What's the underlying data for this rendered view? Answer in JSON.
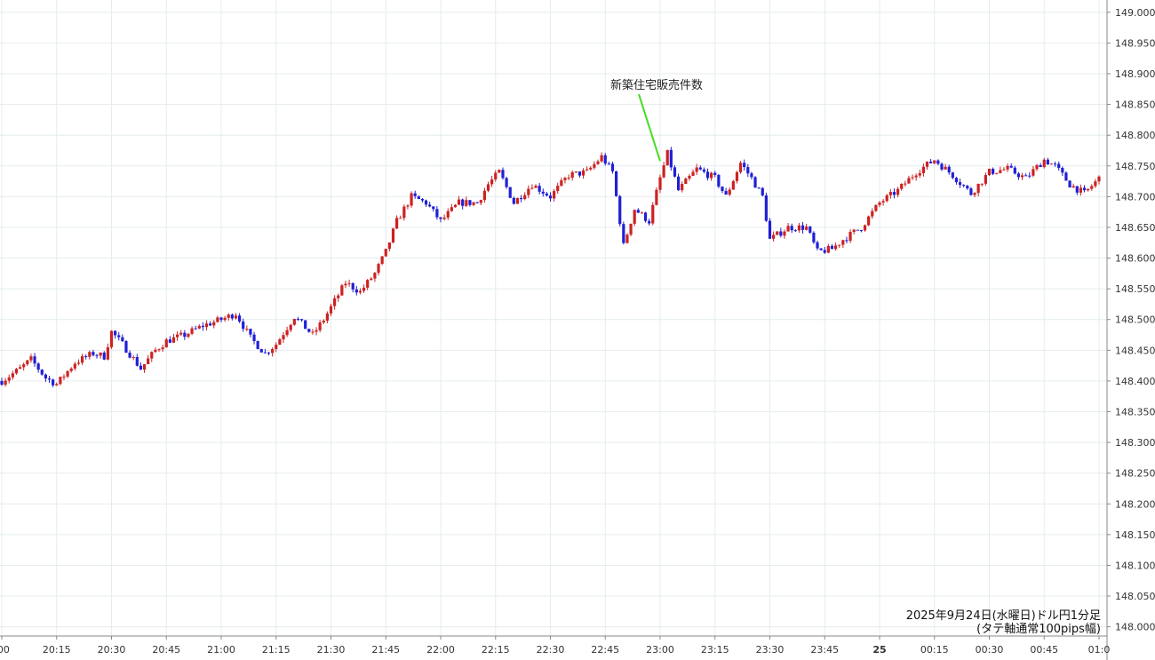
{
  "chart_data": {
    "type": "candlestick",
    "title": "",
    "subtitle": "",
    "caption_line1": "2025年9月24日(水曜日)ドル円1分足",
    "caption_line2": "(タテ軸通常100pips幅)",
    "annotation": "新築住宅販売件数",
    "annotation_time": "23:00",
    "xlabel": "",
    "ylabel": "",
    "ylim": [
      147.985,
      149.02
    ],
    "grid": true,
    "up_color": "#cc2222",
    "down_color": "#1f1fd6",
    "annotation_arrow_color": "#44dd22",
    "y_ticks": [
      "149.000",
      "148.950",
      "148.900",
      "148.850",
      "148.800",
      "148.750",
      "148.700",
      "148.650",
      "148.600",
      "148.550",
      "148.500",
      "148.450",
      "148.400",
      "148.350",
      "148.300",
      "148.250",
      "148.200",
      "148.150",
      "148.100",
      "148.050",
      "148.000"
    ],
    "x_ticks": [
      {
        "label": ":00",
        "time": "20:00",
        "bold": false
      },
      {
        "label": "20:15",
        "time": "20:15",
        "bold": false
      },
      {
        "label": "20:30",
        "time": "20:30",
        "bold": false
      },
      {
        "label": "20:45",
        "time": "20:45",
        "bold": false
      },
      {
        "label": "21:00",
        "time": "21:00",
        "bold": false
      },
      {
        "label": "21:15",
        "time": "21:15",
        "bold": false
      },
      {
        "label": "21:30",
        "time": "21:30",
        "bold": false
      },
      {
        "label": "21:45",
        "time": "21:45",
        "bold": false
      },
      {
        "label": "22:00",
        "time": "22:00",
        "bold": false
      },
      {
        "label": "22:15",
        "time": "22:15",
        "bold": false
      },
      {
        "label": "22:30",
        "time": "22:30",
        "bold": false
      },
      {
        "label": "22:45",
        "time": "22:45",
        "bold": false
      },
      {
        "label": "23:00",
        "time": "23:00",
        "bold": false
      },
      {
        "label": "23:15",
        "time": "23:15",
        "bold": false
      },
      {
        "label": "23:30",
        "time": "23:30",
        "bold": false
      },
      {
        "label": "23:45",
        "time": "23:45",
        "bold": false
      },
      {
        "label": "25",
        "time": "24:00",
        "bold": true
      },
      {
        "label": "00:15",
        "time": "24:15",
        "bold": false
      },
      {
        "label": "00:30",
        "time": "24:30",
        "bold": false
      },
      {
        "label": "00:45",
        "time": "24:45",
        "bold": false
      },
      {
        "label": "01:0",
        "time": "25:00",
        "bold": false
      }
    ],
    "x_range": [
      "20:00",
      "25:00"
    ],
    "close_path": [
      [
        "20:00",
        148.4
      ],
      [
        "20:05",
        148.42
      ],
      [
        "20:08",
        148.435
      ],
      [
        "20:12",
        148.405
      ],
      [
        "20:15",
        148.395
      ],
      [
        "20:20",
        148.43
      ],
      [
        "20:25",
        148.445
      ],
      [
        "20:28",
        148.44
      ],
      [
        "20:30",
        148.48
      ],
      [
        "20:33",
        148.46
      ],
      [
        "20:38",
        148.42
      ],
      [
        "20:42",
        148.45
      ],
      [
        "20:45",
        148.465
      ],
      [
        "20:50",
        148.475
      ],
      [
        "20:55",
        148.49
      ],
      [
        "21:00",
        148.5
      ],
      [
        "21:04",
        148.51
      ],
      [
        "21:08",
        148.47
      ],
      [
        "21:12",
        148.445
      ],
      [
        "21:15",
        148.46
      ],
      [
        "21:20",
        148.505
      ],
      [
        "21:25",
        148.475
      ],
      [
        "21:28",
        148.5
      ],
      [
        "21:30",
        148.52
      ],
      [
        "21:34",
        148.56
      ],
      [
        "21:38",
        148.545
      ],
      [
        "21:42",
        148.575
      ],
      [
        "21:45",
        148.61
      ],
      [
        "21:48",
        148.66
      ],
      [
        "21:52",
        148.7
      ],
      [
        "21:56",
        148.69
      ],
      [
        "22:00",
        148.66
      ],
      [
        "22:05",
        148.69
      ],
      [
        "22:10",
        148.69
      ],
      [
        "22:13",
        148.72
      ],
      [
        "22:16",
        148.74
      ],
      [
        "22:20",
        148.69
      ],
      [
        "22:25",
        148.72
      ],
      [
        "22:30",
        148.7
      ],
      [
        "22:35",
        148.735
      ],
      [
        "22:40",
        148.74
      ],
      [
        "22:44",
        148.765
      ],
      [
        "22:47",
        148.74
      ],
      [
        "22:50",
        148.62
      ],
      [
        "22:53",
        148.68
      ],
      [
        "22:57",
        148.66
      ],
      [
        "23:00",
        148.73
      ],
      [
        "23:02",
        148.77
      ],
      [
        "23:05",
        148.71
      ],
      [
        "23:10",
        148.745
      ],
      [
        "23:15",
        148.73
      ],
      [
        "23:18",
        148.7
      ],
      [
        "23:22",
        148.755
      ],
      [
        "23:25",
        148.73
      ],
      [
        "23:28",
        148.7
      ],
      [
        "23:30",
        148.63
      ],
      [
        "23:35",
        148.65
      ],
      [
        "23:40",
        148.65
      ],
      [
        "23:43",
        148.61
      ],
      [
        "23:47",
        148.615
      ],
      [
        "23:50",
        148.63
      ],
      [
        "23:55",
        148.65
      ],
      [
        "24:00",
        148.69
      ],
      [
        "24:05",
        148.71
      ],
      [
        "24:10",
        148.74
      ],
      [
        "24:15",
        148.76
      ],
      [
        "24:20",
        148.735
      ],
      [
        "24:25",
        148.705
      ],
      [
        "24:30",
        148.74
      ],
      [
        "24:35",
        148.745
      ],
      [
        "24:40",
        148.73
      ],
      [
        "24:45",
        148.76
      ],
      [
        "24:48",
        148.75
      ],
      [
        "24:52",
        148.72
      ],
      [
        "24:56",
        148.705
      ],
      [
        "25:00",
        148.73
      ]
    ]
  }
}
